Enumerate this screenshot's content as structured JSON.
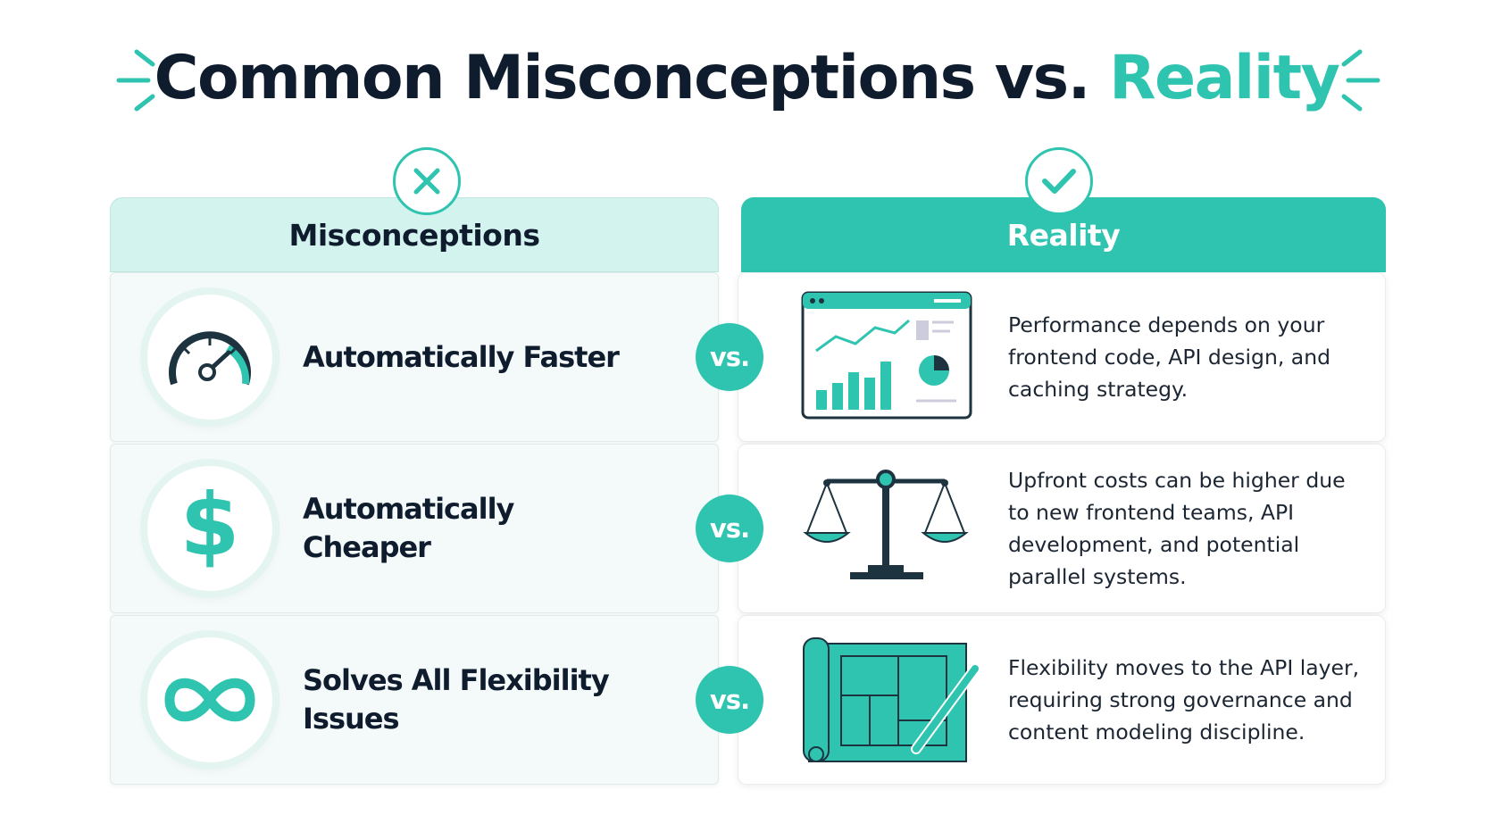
{
  "title": {
    "main": "Common Misconceptions vs.",
    "highlight": "Reality"
  },
  "columns": {
    "left": "Misconceptions",
    "right": "Reality"
  },
  "rows": [
    {
      "myth": "Automatically Faster",
      "vs": "vs.",
      "reality": "Performance depends on your frontend code, API design, and caching strategy."
    },
    {
      "myth": "Automatically Cheaper",
      "vs": "vs.",
      "reality": "Upfront costs can be higher due to new frontend teams, API development, and potential parallel systems."
    },
    {
      "myth": "Solves All Flexibility Issues",
      "vs": "vs.",
      "reality": "Flexibility moves to the API layer, requiring strong governance and content modeling discipline."
    }
  ]
}
